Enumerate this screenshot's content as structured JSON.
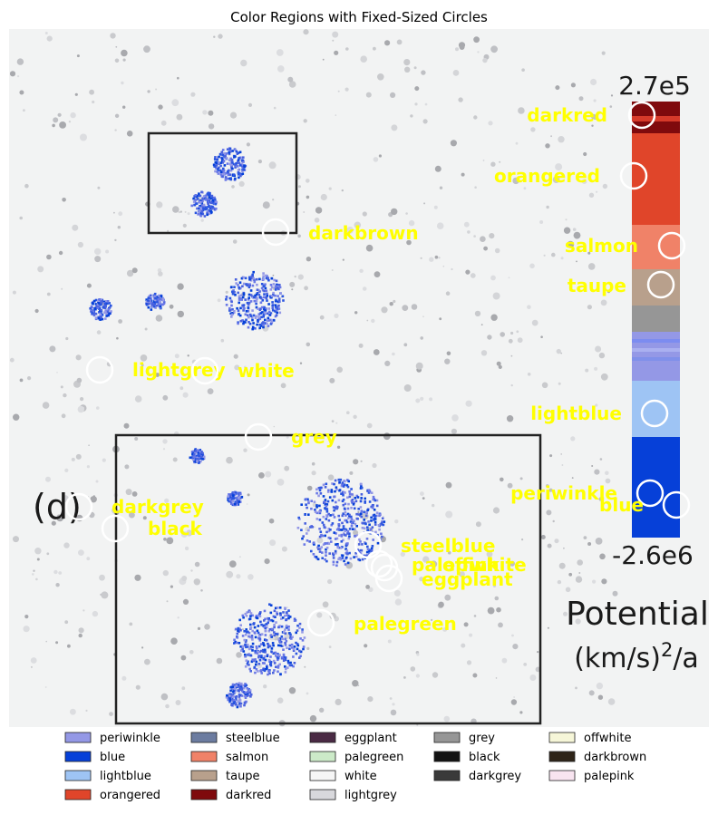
{
  "chart_data": {
    "type": "scatter",
    "title": "Color Regions with Fixed-Sized Circles",
    "image_panel_label": "(d)",
    "colorbar": {
      "max_label": "2.7e5",
      "min_label": "-2.6e6",
      "title_line1": "Potential",
      "title_line2_base": "(km/s)",
      "title_line2_exp": "2",
      "title_line2_tail": "/a"
    },
    "regions": [
      {
        "name": "darkred",
        "label": "darkred",
        "color": "#7f0a0d"
      },
      {
        "name": "orangered",
        "label": "orangered",
        "color": "#e0452a"
      },
      {
        "name": "darkbrown",
        "label": "darkbrown",
        "color": "#2e2418"
      },
      {
        "name": "salmon",
        "label": "salmon",
        "color": "#f08268"
      },
      {
        "name": "taupe",
        "label": "taupe",
        "color": "#b8a08c"
      },
      {
        "name": "lightgrey",
        "label": "lightgrey",
        "color": "#d8d8dc"
      },
      {
        "name": "white",
        "label": "white",
        "color": "#f6f6f6"
      },
      {
        "name": "lightblue",
        "label": "lightblue",
        "color": "#9ec4f4"
      },
      {
        "name": "grey",
        "label": "grey",
        "color": "#969696"
      },
      {
        "name": "periwinkle",
        "label": "periwinkle",
        "color": "#9498e6"
      },
      {
        "name": "blue",
        "label": "blue",
        "color": "#0640d8"
      },
      {
        "name": "darkgrey",
        "label": "darkgrey",
        "color": "#3a3a3a"
      },
      {
        "name": "black",
        "label": "black",
        "color": "#121212"
      },
      {
        "name": "steelblue",
        "label": "steelblue",
        "color": "#6c7ca0"
      },
      {
        "name": "palepink",
        "label": "palepink",
        "color": "#f8e4f0"
      },
      {
        "name": "offwhite",
        "label": "offwhite",
        "color": "#f6f6d8"
      },
      {
        "name": "eggplant",
        "label": "eggplant",
        "color": "#4a2a44"
      },
      {
        "name": "palegreen",
        "label": "palegreen",
        "color": "#cceac8"
      }
    ],
    "legend": [
      {
        "label": "periwinkle",
        "color": "#9498e6"
      },
      {
        "label": "blue",
        "color": "#0640d8"
      },
      {
        "label": "lightblue",
        "color": "#9ec4f4"
      },
      {
        "label": "orangered",
        "color": "#e0452a"
      },
      {
        "label": "steelblue",
        "color": "#6c7ca0"
      },
      {
        "label": "salmon",
        "color": "#f08268"
      },
      {
        "label": "taupe",
        "color": "#b8a08c"
      },
      {
        "label": "darkred",
        "color": "#7f0a0d"
      },
      {
        "label": "eggplant",
        "color": "#4a2a44"
      },
      {
        "label": "palegreen",
        "color": "#cceac8"
      },
      {
        "label": "white",
        "color": "#f6f6f6"
      },
      {
        "label": "lightgrey",
        "color": "#d8d8dc"
      },
      {
        "label": "grey",
        "color": "#969696"
      },
      {
        "label": "black",
        "color": "#121212"
      },
      {
        "label": "darkgrey",
        "color": "#3a3a3a"
      },
      {
        "label": "offwhite",
        "color": "#f6f6d8"
      },
      {
        "label": "darkbrown",
        "color": "#2e2418"
      },
      {
        "label": "palepink",
        "color": "#f8e4f0"
      }
    ]
  }
}
